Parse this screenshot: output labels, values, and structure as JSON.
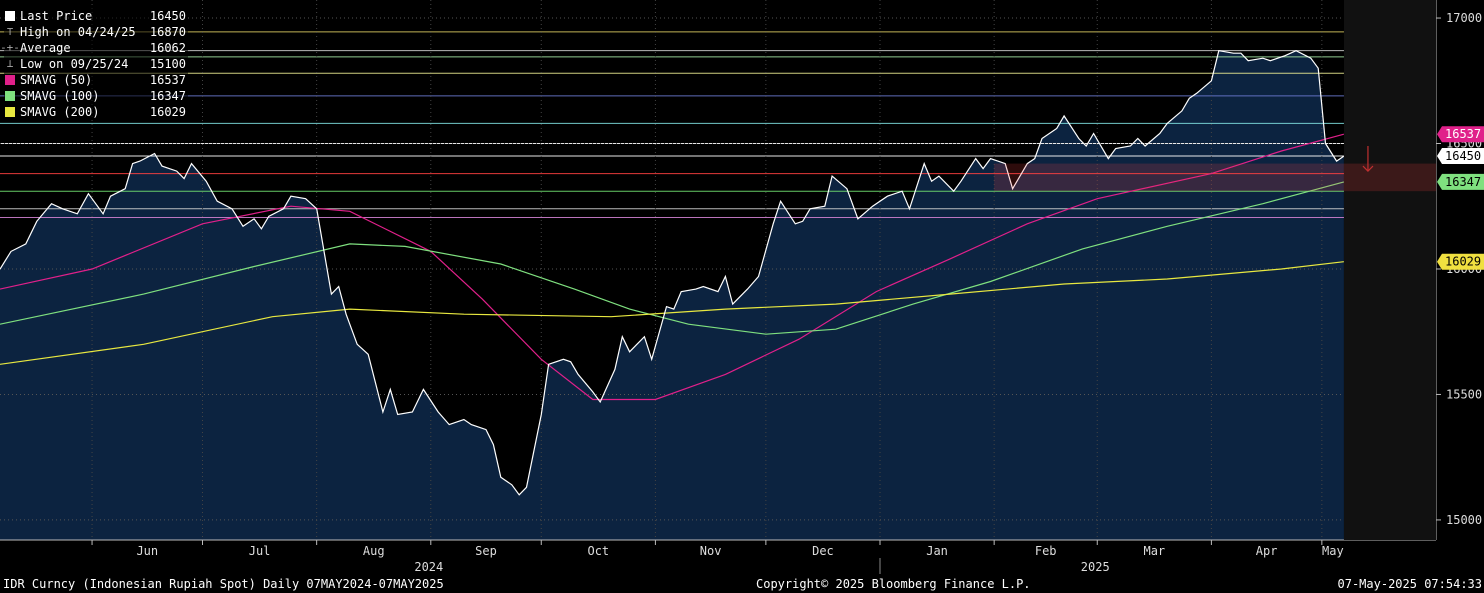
{
  "legend": [
    {
      "label": "Last Price",
      "value": "16450",
      "color": "#ffffff",
      "marker": "box"
    },
    {
      "label": "High on 04/24/25",
      "value": "16870",
      "color": "#aaaaaa",
      "marker": "high"
    },
    {
      "label": "Average",
      "value": "16062",
      "color": "#aaaaaa",
      "marker": "avg"
    },
    {
      "label": "Low on 09/25/24",
      "value": "15100",
      "color": "#aaaaaa",
      "marker": "low"
    },
    {
      "label": "SMAVG (50)",
      "value": "16537",
      "color": "#e0208a",
      "marker": "box"
    },
    {
      "label": "SMAVG (100)",
      "value": "16347",
      "color": "#7fe07f",
      "marker": "box"
    },
    {
      "label": "SMAVG (200)",
      "value": "16029",
      "color": "#e8e840",
      "marker": "box"
    }
  ],
  "footer": {
    "left": "IDR Curncy (Indonesian Rupiah Spot)  Daily 07MAY2024-07MAY2025",
    "center": "Copyright© 2025 Bloomberg Finance L.P.",
    "right": "07-May-2025 07:54:33"
  },
  "chart_data": {
    "type": "line",
    "y_ticks": [
      15000,
      15500,
      16000,
      16500,
      17000
    ],
    "y_tick_labels": [
      "15000",
      "15500",
      "16000",
      "16500",
      "17000"
    ],
    "ylim": [
      14920,
      17040
    ],
    "months": [
      "Jun",
      "Jul",
      "Aug",
      "Sep",
      "Oct",
      "Nov",
      "Dec",
      "Jan",
      "Feb",
      "Mar",
      "Apr",
      "May"
    ],
    "years": [
      "2024",
      "2025"
    ],
    "x_dates": [
      "2024-05-07",
      "2024-06-01",
      "2024-07-01",
      "2024-08-01",
      "2024-09-01",
      "2024-10-01",
      "2024-11-01",
      "2024-12-01",
      "2025-01-01",
      "2025-02-01",
      "2025-03-01",
      "2025-04-01",
      "2025-05-01",
      "2025-05-07"
    ],
    "value_tags": [
      {
        "text": "16537",
        "value": 16537,
        "bg": "#e0208a",
        "fg": "#ffffff"
      },
      {
        "text": "16450",
        "value": 16450,
        "bg": "#ffffff",
        "fg": "#000000"
      },
      {
        "text": "16347",
        "value": 16347,
        "bg": "#7fe07f",
        "fg": "#000000"
      },
      {
        "text": "16029",
        "value": 16029,
        "bg": "#f0e040",
        "fg": "#000000"
      }
    ],
    "ref_lines": [
      {
        "value": 16945,
        "color": "#d8c860"
      },
      {
        "value": 16870,
        "color": "#cccccc"
      },
      {
        "value": 16845,
        "color": "#a0e0a0"
      },
      {
        "value": 16780,
        "color": "#e8e890"
      },
      {
        "value": 16690,
        "color": "#6a78d0"
      },
      {
        "value": 16580,
        "color": "#80e0e0"
      },
      {
        "value": 16500,
        "color": "#ffffff"
      },
      {
        "value": 16450,
        "color": "#ffffff"
      },
      {
        "value": 16380,
        "color": "#ff4040"
      },
      {
        "value": 16310,
        "color": "#70e070"
      },
      {
        "value": 16240,
        "color": "#d0d0d0"
      },
      {
        "value": 16205,
        "color": "#d080d0"
      }
    ],
    "series": [
      {
        "name": "Last Price",
        "color": "#ffffff",
        "points": [
          [
            "2024-05-07",
            15999
          ],
          [
            "2024-05-10",
            16070
          ],
          [
            "2024-05-14",
            16100
          ],
          [
            "2024-05-17",
            16190
          ],
          [
            "2024-05-21",
            16260
          ],
          [
            "2024-05-24",
            16240
          ],
          [
            "2024-05-28",
            16220
          ],
          [
            "2024-05-31",
            16300
          ],
          [
            "2024-06-04",
            16220
          ],
          [
            "2024-06-06",
            16290
          ],
          [
            "2024-06-10",
            16320
          ],
          [
            "2024-06-12",
            16420
          ],
          [
            "2024-06-14",
            16430
          ],
          [
            "2024-06-18",
            16460
          ],
          [
            "2024-06-20",
            16410
          ],
          [
            "2024-06-24",
            16390
          ],
          [
            "2024-06-26",
            16360
          ],
          [
            "2024-06-28",
            16420
          ],
          [
            "2024-07-02",
            16350
          ],
          [
            "2024-07-05",
            16270
          ],
          [
            "2024-07-09",
            16240
          ],
          [
            "2024-07-12",
            16170
          ],
          [
            "2024-07-15",
            16200
          ],
          [
            "2024-07-17",
            16160
          ],
          [
            "2024-07-19",
            16210
          ],
          [
            "2024-07-23",
            16240
          ],
          [
            "2024-07-25",
            16290
          ],
          [
            "2024-07-29",
            16280
          ],
          [
            "2024-08-01",
            16240
          ],
          [
            "2024-08-05",
            15900
          ],
          [
            "2024-08-07",
            15930
          ],
          [
            "2024-08-09",
            15820
          ],
          [
            "2024-08-12",
            15700
          ],
          [
            "2024-08-15",
            15660
          ],
          [
            "2024-08-19",
            15430
          ],
          [
            "2024-08-21",
            15520
          ],
          [
            "2024-08-23",
            15420
          ],
          [
            "2024-08-27",
            15430
          ],
          [
            "2024-08-30",
            15520
          ],
          [
            "2024-09-03",
            15430
          ],
          [
            "2024-09-06",
            15380
          ],
          [
            "2024-09-10",
            15400
          ],
          [
            "2024-09-12",
            15380
          ],
          [
            "2024-09-16",
            15360
          ],
          [
            "2024-09-18",
            15300
          ],
          [
            "2024-09-20",
            15170
          ],
          [
            "2024-09-23",
            15140
          ],
          [
            "2024-09-25",
            15100
          ],
          [
            "2024-09-27",
            15130
          ],
          [
            "2024-10-01",
            15420
          ],
          [
            "2024-10-03",
            15620
          ],
          [
            "2024-10-07",
            15640
          ],
          [
            "2024-10-09",
            15630
          ],
          [
            "2024-10-11",
            15580
          ],
          [
            "2024-10-15",
            15510
          ],
          [
            "2024-10-17",
            15470
          ],
          [
            "2024-10-21",
            15600
          ],
          [
            "2024-10-23",
            15730
          ],
          [
            "2024-10-25",
            15670
          ],
          [
            "2024-10-29",
            15730
          ],
          [
            "2024-10-31",
            15640
          ],
          [
            "2024-11-04",
            15850
          ],
          [
            "2024-11-06",
            15840
          ],
          [
            "2024-11-08",
            15910
          ],
          [
            "2024-11-12",
            15920
          ],
          [
            "2024-11-14",
            15930
          ],
          [
            "2024-11-18",
            15910
          ],
          [
            "2024-11-20",
            15970
          ],
          [
            "2024-11-22",
            15860
          ],
          [
            "2024-11-26",
            15920
          ],
          [
            "2024-11-29",
            15970
          ],
          [
            "2024-12-03",
            16180
          ],
          [
            "2024-12-05",
            16270
          ],
          [
            "2024-12-09",
            16180
          ],
          [
            "2024-12-11",
            16190
          ],
          [
            "2024-12-13",
            16240
          ],
          [
            "2024-12-17",
            16250
          ],
          [
            "2024-12-19",
            16370
          ],
          [
            "2024-12-23",
            16320
          ],
          [
            "2024-12-26",
            16200
          ],
          [
            "2024-12-30",
            16250
          ],
          [
            "2025-01-03",
            16290
          ],
          [
            "2025-01-07",
            16310
          ],
          [
            "2025-01-09",
            16240
          ],
          [
            "2025-01-13",
            16420
          ],
          [
            "2025-01-15",
            16350
          ],
          [
            "2025-01-17",
            16370
          ],
          [
            "2025-01-21",
            16310
          ],
          [
            "2025-01-23",
            16350
          ],
          [
            "2025-01-27",
            16440
          ],
          [
            "2025-01-29",
            16400
          ],
          [
            "2025-01-31",
            16440
          ],
          [
            "2025-02-04",
            16420
          ],
          [
            "2025-02-06",
            16320
          ],
          [
            "2025-02-10",
            16420
          ],
          [
            "2025-02-12",
            16440
          ],
          [
            "2025-02-14",
            16520
          ],
          [
            "2025-02-18",
            16560
          ],
          [
            "2025-02-20",
            16610
          ],
          [
            "2025-02-24",
            16520
          ],
          [
            "2025-02-26",
            16490
          ],
          [
            "2025-02-28",
            16540
          ],
          [
            "2025-03-04",
            16440
          ],
          [
            "2025-03-06",
            16480
          ],
          [
            "2025-03-10",
            16490
          ],
          [
            "2025-03-12",
            16520
          ],
          [
            "2025-03-14",
            16490
          ],
          [
            "2025-03-18",
            16540
          ],
          [
            "2025-03-20",
            16580
          ],
          [
            "2025-03-24",
            16630
          ],
          [
            "2025-03-26",
            16680
          ],
          [
            "2025-03-28",
            16700
          ],
          [
            "2025-04-01",
            16750
          ],
          [
            "2025-04-03",
            16870
          ],
          [
            "2025-04-07",
            16860
          ],
          [
            "2025-04-09",
            16860
          ],
          [
            "2025-04-11",
            16830
          ],
          [
            "2025-04-15",
            16840
          ],
          [
            "2025-04-17",
            16830
          ],
          [
            "2025-04-21",
            16850
          ],
          [
            "2025-04-24",
            16870
          ],
          [
            "2025-04-28",
            16840
          ],
          [
            "2025-04-30",
            16800
          ],
          [
            "2025-05-02",
            16500
          ],
          [
            "2025-05-05",
            16430
          ],
          [
            "2025-05-07",
            16450
          ]
        ]
      },
      {
        "name": "SMAVG (50)",
        "color": "#e0208a",
        "points": [
          [
            "2024-05-07",
            15920
          ],
          [
            "2024-06-01",
            16000
          ],
          [
            "2024-07-01",
            16180
          ],
          [
            "2024-07-25",
            16250
          ],
          [
            "2024-08-10",
            16230
          ],
          [
            "2024-09-01",
            16070
          ],
          [
            "2024-09-15",
            15880
          ],
          [
            "2024-10-01",
            15640
          ],
          [
            "2024-10-15",
            15480
          ],
          [
            "2024-11-01",
            15480
          ],
          [
            "2024-11-20",
            15580
          ],
          [
            "2024-12-10",
            15720
          ],
          [
            "2024-12-31",
            15910
          ],
          [
            "2025-01-20",
            16040
          ],
          [
            "2025-02-10",
            16180
          ],
          [
            "2025-03-01",
            16280
          ],
          [
            "2025-04-01",
            16380
          ],
          [
            "2025-04-20",
            16470
          ],
          [
            "2025-05-07",
            16537
          ]
        ]
      },
      {
        "name": "SMAVG (100)",
        "color": "#7fe07f",
        "points": [
          [
            "2024-05-07",
            15780
          ],
          [
            "2024-06-15",
            15900
          ],
          [
            "2024-07-15",
            16010
          ],
          [
            "2024-08-10",
            16100
          ],
          [
            "2024-08-25",
            16090
          ],
          [
            "2024-09-20",
            16020
          ],
          [
            "2024-10-10",
            15920
          ],
          [
            "2024-10-25",
            15840
          ],
          [
            "2024-11-10",
            15780
          ],
          [
            "2024-12-01",
            15740
          ],
          [
            "2024-12-20",
            15760
          ],
          [
            "2025-01-10",
            15860
          ],
          [
            "2025-01-31",
            15950
          ],
          [
            "2025-02-25",
            16080
          ],
          [
            "2025-03-20",
            16170
          ],
          [
            "2025-04-15",
            16260
          ],
          [
            "2025-05-07",
            16347
          ]
        ]
      },
      {
        "name": "SMAVG (200)",
        "color": "#e8e840",
        "points": [
          [
            "2024-05-07",
            15620
          ],
          [
            "2024-06-15",
            15700
          ],
          [
            "2024-07-20",
            15810
          ],
          [
            "2024-08-10",
            15840
          ],
          [
            "2024-09-10",
            15820
          ],
          [
            "2024-10-20",
            15810
          ],
          [
            "2024-11-20",
            15840
          ],
          [
            "2024-12-20",
            15860
          ],
          [
            "2025-01-20",
            15900
          ],
          [
            "2025-02-20",
            15940
          ],
          [
            "2025-03-20",
            15960
          ],
          [
            "2025-04-20",
            16000
          ],
          [
            "2025-05-07",
            16029
          ]
        ]
      }
    ]
  }
}
